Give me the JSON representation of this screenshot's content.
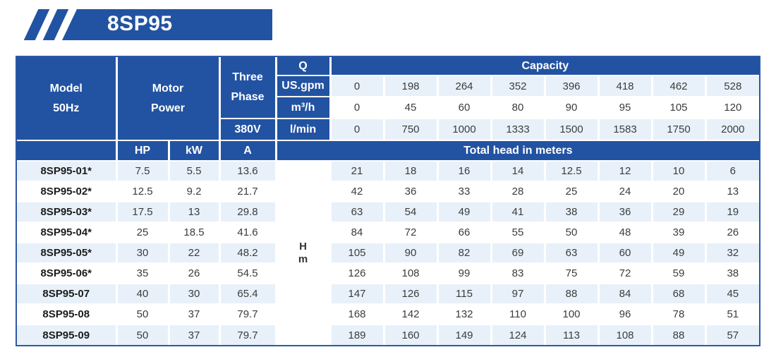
{
  "banner": {
    "title": "8SP95"
  },
  "colors": {
    "primary_blue": "#2253A2",
    "row_stripe": "#E8F1F9",
    "table_border": "#2E59A6"
  },
  "table": {
    "header": {
      "model_line1": "Model",
      "model_line2": "50Hz",
      "motor_line1": "Motor",
      "motor_line2": "Power",
      "three_line1": "Three",
      "three_line2": "Phase",
      "voltage": "380V",
      "q": "Q",
      "capacity": "Capacity",
      "hp": "HP",
      "kw": "kW",
      "a": "A",
      "total_head": "Total head in meters",
      "h_line1": "H",
      "h_line2": "m"
    },
    "capacity_rows": [
      {
        "unit": "US.gpm",
        "values": [
          "0",
          "198",
          "264",
          "352",
          "396",
          "418",
          "462",
          "528"
        ]
      },
      {
        "unit": "m³/h",
        "values": [
          "0",
          "45",
          "60",
          "80",
          "90",
          "95",
          "105",
          "120"
        ]
      },
      {
        "unit": "l/min",
        "values": [
          "0",
          "750",
          "1000",
          "1333",
          "1500",
          "1583",
          "1750",
          "2000"
        ]
      }
    ],
    "rows": [
      {
        "model": "8SP95-01*",
        "hp": "7.5",
        "kw": "5.5",
        "a": "13.6",
        "heads": [
          "21",
          "18",
          "16",
          "14",
          "12.5",
          "12",
          "10",
          "6"
        ]
      },
      {
        "model": "8SP95-02*",
        "hp": "12.5",
        "kw": "9.2",
        "a": "21.7",
        "heads": [
          "42",
          "36",
          "33",
          "28",
          "25",
          "24",
          "20",
          "13"
        ]
      },
      {
        "model": "8SP95-03*",
        "hp": "17.5",
        "kw": "13",
        "a": "29.8",
        "heads": [
          "63",
          "54",
          "49",
          "41",
          "38",
          "36",
          "29",
          "19"
        ]
      },
      {
        "model": "8SP95-04*",
        "hp": "25",
        "kw": "18.5",
        "a": "41.6",
        "heads": [
          "84",
          "72",
          "66",
          "55",
          "50",
          "48",
          "39",
          "26"
        ]
      },
      {
        "model": "8SP95-05*",
        "hp": "30",
        "kw": "22",
        "a": "48.2",
        "heads": [
          "105",
          "90",
          "82",
          "69",
          "63",
          "60",
          "49",
          "32"
        ]
      },
      {
        "model": "8SP95-06*",
        "hp": "35",
        "kw": "26",
        "a": "54.5",
        "heads": [
          "126",
          "108",
          "99",
          "83",
          "75",
          "72",
          "59",
          "38"
        ]
      },
      {
        "model": "8SP95-07",
        "hp": "40",
        "kw": "30",
        "a": "65.4",
        "heads": [
          "147",
          "126",
          "115",
          "97",
          "88",
          "84",
          "68",
          "45"
        ]
      },
      {
        "model": "8SP95-08",
        "hp": "50",
        "kw": "37",
        "a": "79.7",
        "heads": [
          "168",
          "142",
          "132",
          "110",
          "100",
          "96",
          "78",
          "51"
        ]
      },
      {
        "model": "8SP95-09",
        "hp": "50",
        "kw": "37",
        "a": "79.7",
        "heads": [
          "189",
          "160",
          "149",
          "124",
          "113",
          "108",
          "88",
          "57"
        ]
      }
    ]
  }
}
